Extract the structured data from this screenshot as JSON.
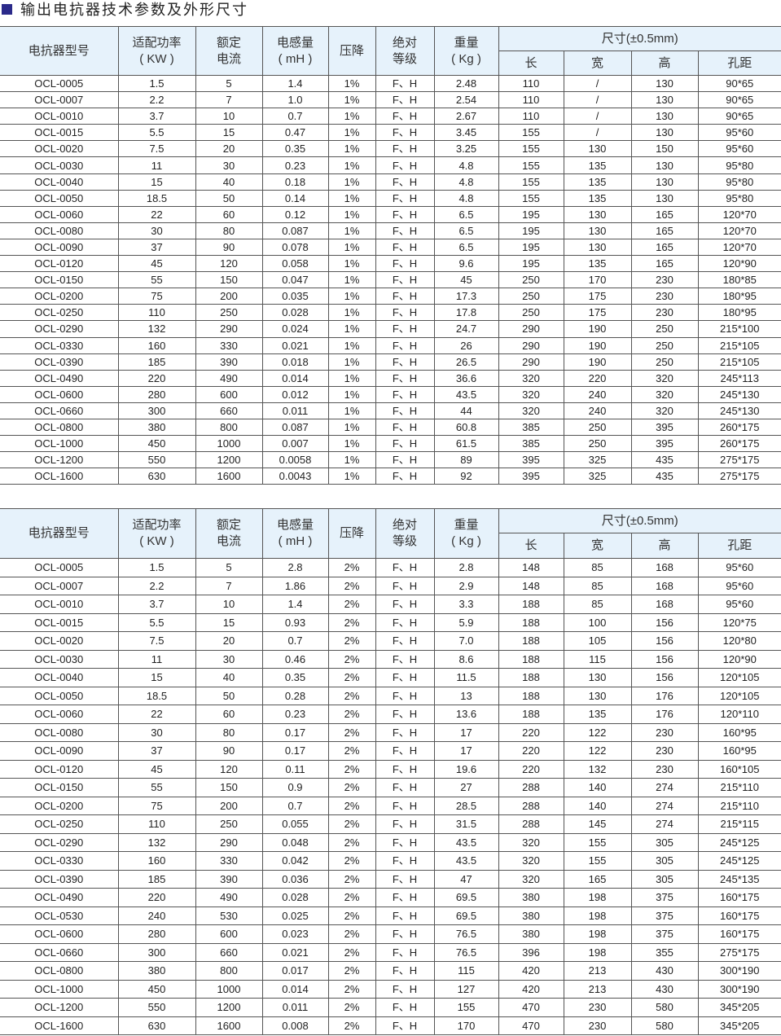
{
  "title": "输出电抗器技术参数及外形尺寸",
  "header": {
    "model": "电抗器型号",
    "power": [
      "适配功率",
      "( KW )"
    ],
    "current": [
      "额定",
      "电流"
    ],
    "inductance": [
      "电感量",
      "( mH )"
    ],
    "drop": "压降",
    "insulation": [
      "绝对",
      "等级"
    ],
    "weight": [
      "重量",
      "( Kg )"
    ],
    "dimensions": "尺寸(±0.5mm)",
    "length": "长",
    "width": "宽",
    "height": "高",
    "hole": "孔距"
  },
  "tables": [
    {
      "rows": [
        [
          "OCL-0005",
          "1.5",
          "5",
          "1.4",
          "1%",
          "F、H",
          "2.48",
          "110",
          "/",
          "130",
          "90*65"
        ],
        [
          "OCL-0007",
          "2.2",
          "7",
          "1.0",
          "1%",
          "F、H",
          "2.54",
          "110",
          "/",
          "130",
          "90*65"
        ],
        [
          "OCL-0010",
          "3.7",
          "10",
          "0.7",
          "1%",
          "F、H",
          "2.67",
          "110",
          "/",
          "130",
          "90*65"
        ],
        [
          "OCL-0015",
          "5.5",
          "15",
          "0.47",
          "1%",
          "F、H",
          "3.45",
          "155",
          "/",
          "130",
          "95*60"
        ],
        [
          "OCL-0020",
          "7.5",
          "20",
          "0.35",
          "1%",
          "F、H",
          "3.25",
          "155",
          "130",
          "150",
          "95*60"
        ],
        [
          "OCL-0030",
          "11",
          "30",
          "0.23",
          "1%",
          "F、H",
          "4.8",
          "155",
          "135",
          "130",
          "95*80"
        ],
        [
          "OCL-0040",
          "15",
          "40",
          "0.18",
          "1%",
          "F、H",
          "4.8",
          "155",
          "135",
          "130",
          "95*80"
        ],
        [
          "OCL-0050",
          "18.5",
          "50",
          "0.14",
          "1%",
          "F、H",
          "4.8",
          "155",
          "135",
          "130",
          "95*80"
        ],
        [
          "OCL-0060",
          "22",
          "60",
          "0.12",
          "1%",
          "F、H",
          "6.5",
          "195",
          "130",
          "165",
          "120*70"
        ],
        [
          "OCL-0080",
          "30",
          "80",
          "0.087",
          "1%",
          "F、H",
          "6.5",
          "195",
          "130",
          "165",
          "120*70"
        ],
        [
          "OCL-0090",
          "37",
          "90",
          "0.078",
          "1%",
          "F、H",
          "6.5",
          "195",
          "130",
          "165",
          "120*70"
        ],
        [
          "OCL-0120",
          "45",
          "120",
          "0.058",
          "1%",
          "F、H",
          "9.6",
          "195",
          "135",
          "165",
          "120*90"
        ],
        [
          "OCL-0150",
          "55",
          "150",
          "0.047",
          "1%",
          "F、H",
          "45",
          "250",
          "170",
          "230",
          "180*85"
        ],
        [
          "OCL-0200",
          "75",
          "200",
          "0.035",
          "1%",
          "F、H",
          "17.3",
          "250",
          "175",
          "230",
          "180*95"
        ],
        [
          "OCL-0250",
          "110",
          "250",
          "0.028",
          "1%",
          "F、H",
          "17.8",
          "250",
          "175",
          "230",
          "180*95"
        ],
        [
          "OCL-0290",
          "132",
          "290",
          "0.024",
          "1%",
          "F、H",
          "24.7",
          "290",
          "190",
          "250",
          "215*100"
        ],
        [
          "OCL-0330",
          "160",
          "330",
          "0.021",
          "1%",
          "F、H",
          "26",
          "290",
          "190",
          "250",
          "215*105"
        ],
        [
          "OCL-0390",
          "185",
          "390",
          "0.018",
          "1%",
          "F、H",
          "26.5",
          "290",
          "190",
          "250",
          "215*105"
        ],
        [
          "OCL-0490",
          "220",
          "490",
          "0.014",
          "1%",
          "F、H",
          "36.6",
          "320",
          "220",
          "320",
          "245*113"
        ],
        [
          "OCL-0600",
          "280",
          "600",
          "0.012",
          "1%",
          "F、H",
          "43.5",
          "320",
          "240",
          "320",
          "245*130"
        ],
        [
          "OCL-0660",
          "300",
          "660",
          "0.011",
          "1%",
          "F、H",
          "44",
          "320",
          "240",
          "320",
          "245*130"
        ],
        [
          "OCL-0800",
          "380",
          "800",
          "0.087",
          "1%",
          "F、H",
          "60.8",
          "385",
          "250",
          "395",
          "260*175"
        ],
        [
          "OCL-1000",
          "450",
          "1000",
          "0.007",
          "1%",
          "F、H",
          "61.5",
          "385",
          "250",
          "395",
          "260*175"
        ],
        [
          "OCL-1200",
          "550",
          "1200",
          "0.0058",
          "1%",
          "F、H",
          "89",
          "395",
          "325",
          "435",
          "275*175"
        ],
        [
          "OCL-1600",
          "630",
          "1600",
          "0.0043",
          "1%",
          "F、H",
          "92",
          "395",
          "325",
          "435",
          "275*175"
        ]
      ]
    },
    {
      "rows": [
        [
          "OCL-0005",
          "1.5",
          "5",
          "2.8",
          "2%",
          "F、H",
          "2.8",
          "148",
          "85",
          "168",
          "95*60"
        ],
        [
          "OCL-0007",
          "2.2",
          "7",
          "1.86",
          "2%",
          "F、H",
          "2.9",
          "148",
          "85",
          "168",
          "95*60"
        ],
        [
          "OCL-0010",
          "3.7",
          "10",
          "1.4",
          "2%",
          "F、H",
          "3.3",
          "188",
          "85",
          "168",
          "95*60"
        ],
        [
          "OCL-0015",
          "5.5",
          "15",
          "0.93",
          "2%",
          "F、H",
          "5.9",
          "188",
          "100",
          "156",
          "120*75"
        ],
        [
          "OCL-0020",
          "7.5",
          "20",
          "0.7",
          "2%",
          "F、H",
          "7.0",
          "188",
          "105",
          "156",
          "120*80"
        ],
        [
          "OCL-0030",
          "11",
          "30",
          "0.46",
          "2%",
          "F、H",
          "8.6",
          "188",
          "115",
          "156",
          "120*90"
        ],
        [
          "OCL-0040",
          "15",
          "40",
          "0.35",
          "2%",
          "F、H",
          "11.5",
          "188",
          "130",
          "156",
          "120*105"
        ],
        [
          "OCL-0050",
          "18.5",
          "50",
          "0.28",
          "2%",
          "F、H",
          "13",
          "188",
          "130",
          "176",
          "120*105"
        ],
        [
          "OCL-0060",
          "22",
          "60",
          "0.23",
          "2%",
          "F、H",
          "13.6",
          "188",
          "135",
          "176",
          "120*110"
        ],
        [
          "OCL-0080",
          "30",
          "80",
          "0.17",
          "2%",
          "F、H",
          "17",
          "220",
          "122",
          "230",
          "160*95"
        ],
        [
          "OCL-0090",
          "37",
          "90",
          "0.17",
          "2%",
          "F、H",
          "17",
          "220",
          "122",
          "230",
          "160*95"
        ],
        [
          "OCL-0120",
          "45",
          "120",
          "0.11",
          "2%",
          "F、H",
          "19.6",
          "220",
          "132",
          "230",
          "160*105"
        ],
        [
          "OCL-0150",
          "55",
          "150",
          "0.9",
          "2%",
          "F、H",
          "27",
          "288",
          "140",
          "274",
          "215*110"
        ],
        [
          "OCL-0200",
          "75",
          "200",
          "0.7",
          "2%",
          "F、H",
          "28.5",
          "288",
          "140",
          "274",
          "215*110"
        ],
        [
          "OCL-0250",
          "110",
          "250",
          "0.055",
          "2%",
          "F、H",
          "31.5",
          "288",
          "145",
          "274",
          "215*115"
        ],
        [
          "OCL-0290",
          "132",
          "290",
          "0.048",
          "2%",
          "F、H",
          "43.5",
          "320",
          "155",
          "305",
          "245*125"
        ],
        [
          "OCL-0330",
          "160",
          "330",
          "0.042",
          "2%",
          "F、H",
          "43.5",
          "320",
          "155",
          "305",
          "245*125"
        ],
        [
          "OCL-0390",
          "185",
          "390",
          "0.036",
          "2%",
          "F、H",
          "47",
          "320",
          "165",
          "305",
          "245*135"
        ],
        [
          "OCL-0490",
          "220",
          "490",
          "0.028",
          "2%",
          "F、H",
          "69.5",
          "380",
          "198",
          "375",
          "160*175"
        ],
        [
          "OCL-0530",
          "240",
          "530",
          "0.025",
          "2%",
          "F、H",
          "69.5",
          "380",
          "198",
          "375",
          "160*175"
        ],
        [
          "OCL-0600",
          "280",
          "600",
          "0.023",
          "2%",
          "F、H",
          "76.5",
          "380",
          "198",
          "375",
          "160*175"
        ],
        [
          "OCL-0660",
          "300",
          "660",
          "0.021",
          "2%",
          "F、H",
          "76.5",
          "396",
          "198",
          "355",
          "275*175"
        ],
        [
          "OCL-0800",
          "380",
          "800",
          "0.017",
          "2%",
          "F、H",
          "115",
          "420",
          "213",
          "430",
          "300*190"
        ],
        [
          "OCL-1000",
          "450",
          "1000",
          "0.014",
          "2%",
          "F、H",
          "127",
          "420",
          "213",
          "430",
          "300*190"
        ],
        [
          "OCL-1200",
          "550",
          "1200",
          "0.011",
          "2%",
          "F、H",
          "155",
          "470",
          "230",
          "580",
          "345*205"
        ],
        [
          "OCL-1600",
          "630",
          "1600",
          "0.008",
          "2%",
          "F、H",
          "170",
          "470",
          "230",
          "580",
          "345*205"
        ]
      ]
    }
  ],
  "colors": {
    "header_bg": "#e6f2fb",
    "title_marker": "#2b2a8a",
    "border": "#555555"
  }
}
